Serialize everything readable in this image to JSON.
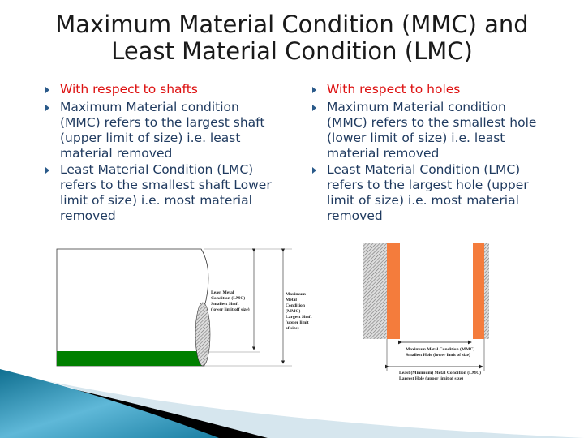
{
  "title": {
    "line1": "Maximum Material Condition (MMC) and",
    "line2": "Least Material Condition (LMC)"
  },
  "left": {
    "heading": "With respect to shafts",
    "bullets": [
      "Maximum Material condition (MMC) refers to the largest shaft (upper limit of size)  i.e. least material removed",
      " Least Material Condition (LMC) refers to the smallest shaft Lower limit of size) i.e. most material removed"
    ]
  },
  "right": {
    "heading": "With respect to holes",
    "bullets": [
      "Maximum Material condition (MMC) refers to the smallest hole (lower limit of size)  i.e. least material removed",
      " Least Material Condition (LMC) refers to the largest hole (upper limit of size) i.e. most material removed"
    ]
  },
  "shaft_diagram": {
    "lmc_label": [
      "Least Metal",
      "Condition (LMC)",
      "Smallest Shaft",
      "(lower limit off size)"
    ],
    "mmc_label": [
      "Maximum",
      "Metal",
      "Condition",
      "(MMC)",
      "Largest Shaft",
      "(upper limit",
      "of size)"
    ]
  },
  "hole_diagram": {
    "mmc_label": [
      "Maximum Metal Condition (MMC)",
      "Smallest Hole (lower limit of size)"
    ],
    "lmc_label": [
      "Least (Minimum) Metal Condition (LMC)",
      "Largest Hole (upper limit of size)"
    ]
  },
  "colors": {
    "heading": "#dd1111",
    "body": "#1f3a5f",
    "shaft_band": "#008000",
    "hole_wall": "#f47c3c"
  }
}
